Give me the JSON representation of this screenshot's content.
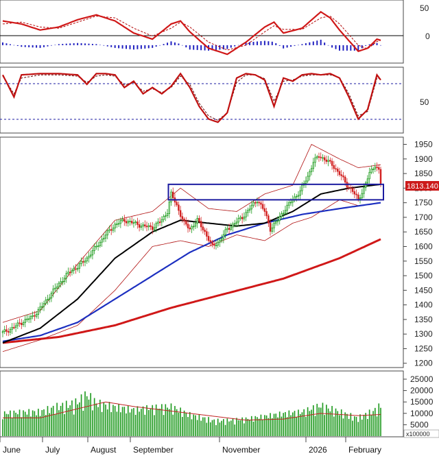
{
  "colors": {
    "up": "#1a9a1a",
    "down": "#d22020",
    "macd_line": "#d01818",
    "signal_line": "#b00000",
    "macd_hist": "#2020c0",
    "stoch_k": "#c01010",
    "stoch_d": "#600000",
    "ma_short": "#000000",
    "ma_mid": "#1c2fc0",
    "ma_long": "#d01818",
    "bollinger": "#b01010",
    "volume": "#1f9a1f",
    "volume_ma": "#c02020",
    "price_tag": "#cc1a1a",
    "box": "#1a1aa0"
  },
  "macd_panel": {
    "ticks": [
      "50",
      "0"
    ]
  },
  "stoch_panel": {
    "ticks": [
      "50"
    ]
  },
  "price_panel": {
    "ticks": [
      "1950",
      "1900",
      "1850",
      "1800",
      "1750",
      "1700",
      "1650",
      "1600",
      "1550",
      "1500",
      "1450",
      "1400",
      "1350",
      "1300",
      "1250",
      "1200"
    ],
    "last_price_label": "1813.140"
  },
  "volume_panel": {
    "ticks": [
      "25000",
      "20000",
      "15000",
      "10000",
      "5000"
    ],
    "unit_label": "x100000"
  },
  "x_labels": [
    "June",
    "July",
    "August",
    "September",
    "November",
    "2026",
    "February"
  ],
  "chart_data": {
    "type": "candlestick",
    "price_range": [
      1190,
      1970
    ],
    "consolidation_box": {
      "price_low": 1760,
      "price_high": 1813
    },
    "price_path": [
      [
        0,
        1305
      ],
      [
        5,
        1320
      ],
      [
        10,
        1340
      ],
      [
        16,
        1360
      ],
      [
        21,
        1395
      ],
      [
        26,
        1440
      ],
      [
        31,
        1480
      ],
      [
        36,
        1515
      ],
      [
        40,
        1530
      ],
      [
        45,
        1560
      ],
      [
        50,
        1600
      ],
      [
        55,
        1640
      ],
      [
        60,
        1675
      ],
      [
        65,
        1690
      ],
      [
        70,
        1680
      ],
      [
        75,
        1670
      ],
      [
        80,
        1665
      ],
      [
        85,
        1690
      ],
      [
        88,
        1720
      ],
      [
        90,
        1780
      ],
      [
        93,
        1740
      ],
      [
        97,
        1680
      ],
      [
        100,
        1660
      ],
      [
        104,
        1690
      ],
      [
        108,
        1650
      ],
      [
        112,
        1600
      ],
      [
        116,
        1620
      ],
      [
        120,
        1660
      ],
      [
        124,
        1680
      ],
      [
        128,
        1700
      ],
      [
        132,
        1730
      ],
      [
        136,
        1760
      ],
      [
        140,
        1720
      ],
      [
        143,
        1660
      ],
      [
        147,
        1690
      ],
      [
        151,
        1730
      ],
      [
        155,
        1760
      ],
      [
        159,
        1790
      ],
      [
        163,
        1840
      ],
      [
        166,
        1890
      ],
      [
        169,
        1910
      ],
      [
        172,
        1900
      ],
      [
        176,
        1880
      ],
      [
        180,
        1850
      ],
      [
        184,
        1810
      ],
      [
        187,
        1790
      ],
      [
        190,
        1760
      ],
      [
        193,
        1800
      ],
      [
        196,
        1850
      ],
      [
        199,
        1880
      ],
      [
        201,
        1860
      ],
      [
        202,
        1813
      ]
    ],
    "ma_short": [
      [
        0,
        1270
      ],
      [
        20,
        1320
      ],
      [
        40,
        1420
      ],
      [
        60,
        1560
      ],
      [
        80,
        1650
      ],
      [
        95,
        1690
      ],
      [
        110,
        1680
      ],
      [
        125,
        1670
      ],
      [
        140,
        1680
      ],
      [
        155,
        1720
      ],
      [
        170,
        1780
      ],
      [
        185,
        1800
      ],
      [
        202,
        1813
      ]
    ],
    "ma_mid": [
      [
        0,
        1275
      ],
      [
        20,
        1295
      ],
      [
        40,
        1340
      ],
      [
        60,
        1420
      ],
      [
        80,
        1500
      ],
      [
        100,
        1580
      ],
      [
        120,
        1640
      ],
      [
        140,
        1680
      ],
      [
        160,
        1710
      ],
      [
        180,
        1730
      ],
      [
        202,
        1750
      ]
    ],
    "ma_long": [
      [
        0,
        1270
      ],
      [
        30,
        1290
      ],
      [
        60,
        1330
      ],
      [
        90,
        1390
      ],
      [
        120,
        1440
      ],
      [
        150,
        1490
      ],
      [
        180,
        1560
      ],
      [
        202,
        1625
      ]
    ],
    "bollinger_upper": [
      [
        0,
        1340
      ],
      [
        20,
        1380
      ],
      [
        40,
        1540
      ],
      [
        60,
        1690
      ],
      [
        80,
        1720
      ],
      [
        95,
        1800
      ],
      [
        110,
        1730
      ],
      [
        125,
        1720
      ],
      [
        140,
        1780
      ],
      [
        155,
        1810
      ],
      [
        165,
        1950
      ],
      [
        180,
        1900
      ],
      [
        190,
        1870
      ],
      [
        202,
        1880
      ]
    ],
    "bollinger_lower": [
      [
        0,
        1240
      ],
      [
        20,
        1280
      ],
      [
        40,
        1330
      ],
      [
        60,
        1450
      ],
      [
        80,
        1600
      ],
      [
        95,
        1620
      ],
      [
        110,
        1600
      ],
      [
        125,
        1640
      ],
      [
        140,
        1620
      ],
      [
        155,
        1680
      ],
      [
        165,
        1700
      ],
      [
        180,
        1760
      ],
      [
        190,
        1740
      ],
      [
        202,
        1750
      ]
    ],
    "macd": [
      [
        0,
        40
      ],
      [
        10,
        35
      ],
      [
        20,
        25
      ],
      [
        30,
        30
      ],
      [
        40,
        42
      ],
      [
        50,
        50
      ],
      [
        60,
        40
      ],
      [
        70,
        20
      ],
      [
        80,
        10
      ],
      [
        90,
        35
      ],
      [
        95,
        40
      ],
      [
        100,
        22
      ],
      [
        110,
        -5
      ],
      [
        120,
        -15
      ],
      [
        130,
        5
      ],
      [
        140,
        30
      ],
      [
        145,
        38
      ],
      [
        150,
        20
      ],
      [
        160,
        28
      ],
      [
        170,
        55
      ],
      [
        175,
        45
      ],
      [
        180,
        25
      ],
      [
        190,
        -10
      ],
      [
        195,
        -5
      ],
      [
        200,
        10
      ],
      [
        202,
        8
      ]
    ],
    "macd_signal": [
      [
        0,
        35
      ],
      [
        10,
        38
      ],
      [
        20,
        30
      ],
      [
        30,
        28
      ],
      [
        40,
        38
      ],
      [
        50,
        48
      ],
      [
        60,
        45
      ],
      [
        70,
        28
      ],
      [
        80,
        15
      ],
      [
        90,
        28
      ],
      [
        95,
        38
      ],
      [
        100,
        30
      ],
      [
        110,
        5
      ],
      [
        120,
        -8
      ],
      [
        130,
        0
      ],
      [
        140,
        22
      ],
      [
        145,
        32
      ],
      [
        150,
        26
      ],
      [
        160,
        26
      ],
      [
        170,
        45
      ],
      [
        175,
        48
      ],
      [
        180,
        35
      ],
      [
        190,
        0
      ],
      [
        195,
        -6
      ],
      [
        200,
        6
      ],
      [
        202,
        8
      ]
    ],
    "macd_range": [
      -25,
      70
    ],
    "stochastic_k": [
      [
        0,
        90
      ],
      [
        6,
        55
      ],
      [
        10,
        90
      ],
      [
        20,
        92
      ],
      [
        30,
        92
      ],
      [
        40,
        90
      ],
      [
        45,
        75
      ],
      [
        50,
        92
      ],
      [
        55,
        92
      ],
      [
        60,
        90
      ],
      [
        65,
        70
      ],
      [
        70,
        80
      ],
      [
        75,
        60
      ],
      [
        80,
        70
      ],
      [
        85,
        60
      ],
      [
        90,
        72
      ],
      [
        95,
        92
      ],
      [
        100,
        70
      ],
      [
        105,
        40
      ],
      [
        110,
        20
      ],
      [
        115,
        15
      ],
      [
        120,
        30
      ],
      [
        125,
        85
      ],
      [
        130,
        92
      ],
      [
        135,
        90
      ],
      [
        140,
        82
      ],
      [
        145,
        40
      ],
      [
        150,
        85
      ],
      [
        155,
        80
      ],
      [
        160,
        90
      ],
      [
        165,
        92
      ],
      [
        170,
        90
      ],
      [
        175,
        92
      ],
      [
        180,
        85
      ],
      [
        185,
        55
      ],
      [
        190,
        20
      ],
      [
        195,
        35
      ],
      [
        200,
        90
      ],
      [
        202,
        82
      ]
    ],
    "stochastic_d": [
      [
        0,
        88
      ],
      [
        6,
        60
      ],
      [
        10,
        85
      ],
      [
        20,
        90
      ],
      [
        30,
        90
      ],
      [
        40,
        88
      ],
      [
        45,
        78
      ],
      [
        50,
        88
      ],
      [
        55,
        90
      ],
      [
        60,
        88
      ],
      [
        65,
        74
      ],
      [
        70,
        78
      ],
      [
        75,
        64
      ],
      [
        80,
        68
      ],
      [
        85,
        62
      ],
      [
        90,
        70
      ],
      [
        95,
        88
      ],
      [
        100,
        75
      ],
      [
        105,
        45
      ],
      [
        110,
        25
      ],
      [
        115,
        18
      ],
      [
        120,
        30
      ],
      [
        125,
        78
      ],
      [
        130,
        90
      ],
      [
        135,
        90
      ],
      [
        140,
        84
      ],
      [
        145,
        48
      ],
      [
        150,
        80
      ],
      [
        155,
        82
      ],
      [
        160,
        88
      ],
      [
        165,
        90
      ],
      [
        170,
        90
      ],
      [
        175,
        90
      ],
      [
        180,
        86
      ],
      [
        185,
        60
      ],
      [
        190,
        25
      ],
      [
        195,
        32
      ],
      [
        200,
        85
      ],
      [
        202,
        84
      ]
    ],
    "stochastic_levels": [
      80,
      20
    ],
    "volume_path": [
      [
        0,
        8000
      ],
      [
        10,
        9000
      ],
      [
        20,
        10000
      ],
      [
        30,
        14000
      ],
      [
        40,
        17000
      ],
      [
        45,
        20000
      ],
      [
        50,
        15000
      ],
      [
        60,
        12000
      ],
      [
        70,
        10000
      ],
      [
        80,
        11000
      ],
      [
        90,
        12000
      ],
      [
        100,
        9000
      ],
      [
        110,
        8000
      ],
      [
        120,
        7000
      ],
      [
        130,
        6500
      ],
      [
        140,
        7000
      ],
      [
        150,
        8000
      ],
      [
        160,
        9000
      ],
      [
        170,
        13000
      ],
      [
        180,
        11000
      ],
      [
        190,
        9000
      ],
      [
        200,
        12000
      ],
      [
        202,
        14000
      ]
    ],
    "volume_ma": [
      [
        0,
        8000
      ],
      [
        20,
        8000
      ],
      [
        40,
        12000
      ],
      [
        55,
        15000
      ],
      [
        70,
        13000
      ],
      [
        90,
        11000
      ],
      [
        110,
        9000
      ],
      [
        130,
        7000
      ],
      [
        150,
        7500
      ],
      [
        170,
        10000
      ],
      [
        190,
        9000
      ],
      [
        202,
        9500
      ]
    ],
    "volume_range": [
      0,
      28000
    ]
  }
}
